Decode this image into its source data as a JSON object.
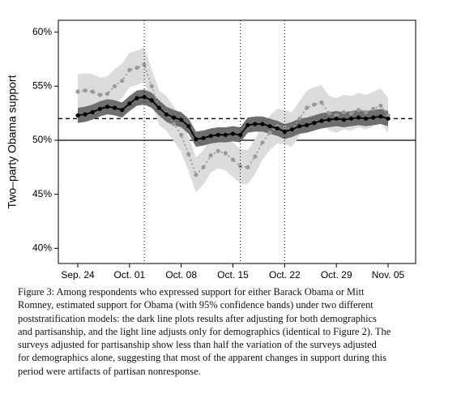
{
  "chart_data": {
    "type": "band-line",
    "y_label": "Two–party Obama support",
    "x": [
      "Sep. 24",
      "Sep. 25",
      "Sep. 26",
      "Sep. 27",
      "Sep. 28",
      "Sep. 29",
      "Sep. 30",
      "Oct. 01",
      "Oct. 02",
      "Oct. 03",
      "Oct. 04",
      "Oct. 05",
      "Oct. 06",
      "Oct. 07",
      "Oct. 08",
      "Oct. 09",
      "Oct. 10",
      "Oct. 11",
      "Oct. 12",
      "Oct. 13",
      "Oct. 14",
      "Oct. 15",
      "Oct. 16",
      "Oct. 17",
      "Oct. 18",
      "Oct. 19",
      "Oct. 20",
      "Oct. 21",
      "Oct. 22",
      "Oct. 23",
      "Oct. 24",
      "Oct. 25",
      "Oct. 26",
      "Oct. 27",
      "Oct. 28",
      "Oct. 29",
      "Oct. 30",
      "Oct. 31",
      "Nov. 01",
      "Nov. 02",
      "Nov. 03",
      "Nov. 04",
      "Nov. 05"
    ],
    "series": [
      {
        "color": "#999999",
        "band_color": "#dcdcdc",
        "dash": true,
        "values": [
          54.5,
          54.6,
          54.5,
          54.2,
          54.3,
          55.0,
          55.5,
          56.5,
          56.7,
          57.0,
          55.0,
          53.0,
          52.5,
          51.5,
          50.5,
          48.7,
          46.8,
          47.5,
          48.6,
          49.0,
          48.8,
          48.2,
          47.6,
          47.5,
          48.5,
          49.8,
          50.7,
          51.3,
          51.2,
          51.0,
          52.0,
          53.0,
          53.3,
          53.5,
          52.5,
          52.3,
          52.6,
          52.5,
          52.8,
          52.6,
          52.9,
          53.2,
          52.3
        ],
        "lower": [
          52.9,
          53.0,
          52.9,
          52.6,
          52.7,
          53.4,
          53.9,
          54.9,
          55.1,
          55.4,
          53.4,
          51.4,
          50.9,
          49.9,
          48.9,
          47.1,
          45.2,
          45.9,
          47.0,
          47.4,
          47.2,
          46.6,
          46.0,
          45.9,
          46.9,
          48.2,
          49.1,
          49.7,
          49.6,
          49.4,
          50.4,
          51.4,
          51.7,
          51.9,
          50.9,
          50.7,
          51.0,
          50.9,
          51.2,
          51.0,
          51.3,
          51.6,
          50.7
        ],
        "upper": [
          56.1,
          56.2,
          56.1,
          55.8,
          55.9,
          56.6,
          57.1,
          58.1,
          58.3,
          58.6,
          56.6,
          54.6,
          54.1,
          53.1,
          52.1,
          50.3,
          48.4,
          49.1,
          50.2,
          50.6,
          50.4,
          49.8,
          49.2,
          49.1,
          50.1,
          51.4,
          52.3,
          52.9,
          52.8,
          52.6,
          53.6,
          54.6,
          54.9,
          55.1,
          54.1,
          53.9,
          54.2,
          54.1,
          54.4,
          54.2,
          54.5,
          54.8,
          53.9
        ]
      },
      {
        "color": "#000000",
        "band_color": "#6e6e6e",
        "dash": false,
        "values": [
          52.3,
          52.4,
          52.6,
          52.9,
          53.1,
          53.0,
          52.8,
          53.4,
          53.9,
          54.0,
          53.7,
          53.0,
          52.4,
          52.1,
          51.9,
          51.3,
          50.1,
          50.2,
          50.4,
          50.5,
          50.5,
          50.6,
          50.5,
          51.4,
          51.5,
          51.5,
          51.3,
          51.1,
          50.8,
          51.0,
          51.3,
          51.4,
          51.6,
          51.8,
          51.9,
          52.0,
          51.9,
          52.0,
          52.1,
          52.0,
          52.1,
          52.2,
          52.0
        ],
        "lower": [
          51.6,
          51.7,
          51.9,
          52.2,
          52.4,
          52.3,
          52.1,
          52.7,
          53.2,
          53.3,
          53.0,
          52.3,
          51.7,
          51.4,
          51.2,
          50.6,
          49.4,
          49.5,
          49.7,
          49.8,
          49.8,
          49.9,
          49.8,
          50.7,
          50.8,
          50.8,
          50.6,
          50.4,
          50.1,
          50.3,
          50.6,
          50.7,
          50.9,
          51.1,
          51.2,
          51.3,
          51.2,
          51.3,
          51.4,
          51.3,
          51.4,
          51.5,
          51.3
        ],
        "upper": [
          53.0,
          53.1,
          53.3,
          53.6,
          53.8,
          53.7,
          53.5,
          54.1,
          54.6,
          54.7,
          54.4,
          53.7,
          53.1,
          52.8,
          52.6,
          52.0,
          50.8,
          50.9,
          51.1,
          51.2,
          51.2,
          51.3,
          51.2,
          52.1,
          52.2,
          52.2,
          52.0,
          51.8,
          51.5,
          51.7,
          52.0,
          52.1,
          52.3,
          52.5,
          52.6,
          52.7,
          52.6,
          52.7,
          52.8,
          52.7,
          52.8,
          52.9,
          52.7
        ]
      }
    ],
    "ylim": [
      38.6,
      61.1
    ],
    "yticks": [
      {
        "value": 40,
        "label": "40%"
      },
      {
        "value": 45,
        "label": "45%"
      },
      {
        "value": 50,
        "label": "50%"
      },
      {
        "value": 55,
        "label": "55%"
      },
      {
        "value": 60,
        "label": "60%"
      }
    ],
    "xticks": [
      "Sep. 24",
      "Oct. 01",
      "Oct. 08",
      "Oct. 15",
      "Oct. 22",
      "Oct. 29",
      "Nov. 05"
    ],
    "hline_solid": 50,
    "hline_dashed": 52,
    "vlines": [
      "Oct. 03",
      "Oct. 16",
      "Oct. 22"
    ]
  },
  "caption": [
    "Figure 3:  Among respondents who expressed support for either Barack Obama or Mitt",
    "Romney, estimated support for Obama (with 95% confidence bands) under two different",
    "poststratification models: the dark line plots results after adjusting for both demographics",
    "and partisanship, and the light line adjusts only for demographics (identical to Figure 2).  The",
    "surveys adjusted for partisanship show less than half the variation of the surveys adjusted",
    "for demographics alone, suggesting that most of the apparent changes in support during this",
    "period were artifacts of partisan nonresponse."
  ]
}
